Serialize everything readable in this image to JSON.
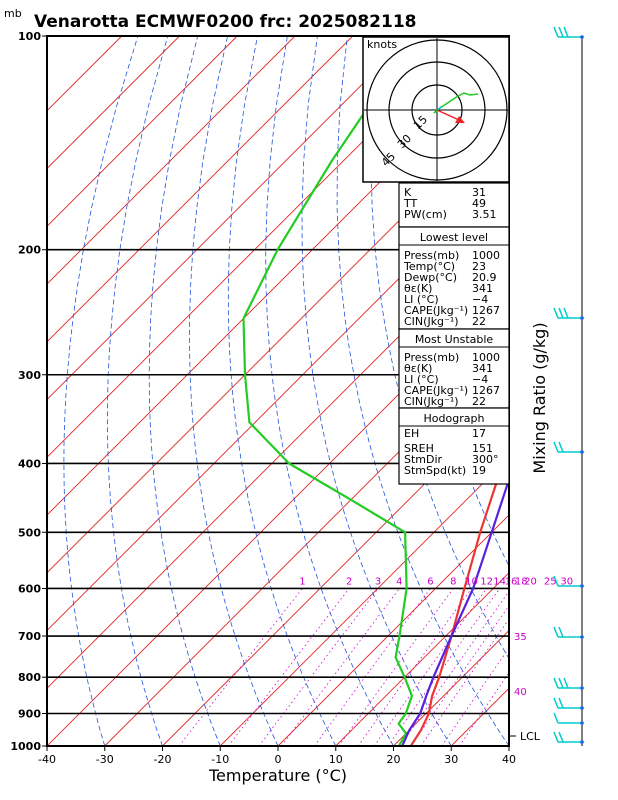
{
  "header": {
    "title": "Venarotta ECMWF0200 frc: 2025082118",
    "unit_mb": "mb"
  },
  "axes": {
    "xlabel": "Temperature (°C)",
    "x_ticks": [
      -40,
      -30,
      -20,
      -10,
      0,
      10,
      20,
      30,
      40
    ],
    "xlim": [
      -40,
      40
    ],
    "p_ticks": [
      100,
      200,
      300,
      400,
      500,
      600,
      700,
      800,
      900,
      1000
    ],
    "plim": [
      100,
      1000
    ],
    "mixing_label": "Mixing Ratio (g/kg)",
    "mixing_values": [
      "1",
      "2",
      "3",
      "4",
      "6",
      "8",
      "10",
      "12",
      "14",
      "16",
      "18",
      "20",
      "25",
      "30"
    ],
    "isotherm_labels": [
      "30",
      "35",
      "40"
    ],
    "lcl_label": "LCL"
  },
  "hodograph": {
    "unit": "knots",
    "ring_labels": [
      "15",
      "30",
      "45"
    ]
  },
  "indices": [
    {
      "label": "K",
      "value": "31"
    },
    {
      "label": "TT",
      "value": "49"
    },
    {
      "label": "PW(cm)",
      "value": "3.51"
    }
  ],
  "lowest_level": {
    "heading": "Lowest level",
    "rows": [
      {
        "label": "Press(mb)",
        "value": "1000"
      },
      {
        "label": "Temp(°C)",
        "value": "23"
      },
      {
        "label": "Dewp(°C)",
        "value": "20.9"
      },
      {
        "label": "θε(K)",
        "value": "341"
      },
      {
        "label": "LI (°C)",
        "value": "−4"
      },
      {
        "label": "CAPE(Jkg⁻¹)",
        "value": "1267"
      },
      {
        "label": "CIN(Jkg⁻¹)",
        "value": "22"
      }
    ]
  },
  "most_unstable": {
    "heading": "Most Unstable",
    "rows": [
      {
        "label": "Press(mb)",
        "value": "1000"
      },
      {
        "label": "θε(K)",
        "value": "341"
      },
      {
        "label": "LI (°C)",
        "value": "−4"
      },
      {
        "label": "CAPE(Jkg⁻¹)",
        "value": "1267"
      },
      {
        "label": "CIN(Jkg⁻¹)",
        "value": "22"
      }
    ]
  },
  "hodo_table": {
    "heading": "Hodograph",
    "rows": [
      {
        "label": "EH",
        "value": "17"
      },
      {
        "label": "SREH",
        "value": "151"
      },
      {
        "label": "StmDir",
        "value": "300°"
      },
      {
        "label": "StmSpd(kt)",
        "value": "19"
      }
    ]
  },
  "colors": {
    "temperature": "#ee3333",
    "dewpoint": "#22cc22",
    "parcel": "#5522dd",
    "isotherm": "#e02020",
    "dry_adiabat": "#2255dd",
    "mixing_ratio": "#cc00cc",
    "barbs": "#00cccc"
  },
  "chart_data": {
    "type": "line",
    "title": "Venarotta ECMWF0200 frc: 2025082118",
    "xlabel": "Temperature (°C)",
    "ylabel": "mb",
    "xlim": [
      -40,
      40
    ],
    "ylim": [
      1000,
      100
    ],
    "log_y": true,
    "skew": true,
    "series": [
      {
        "key": "temperature",
        "pressure": [
          1000,
          950,
          900,
          850,
          800,
          700,
          600,
          500,
          400,
          300,
          250,
          200,
          150,
          100
        ],
        "values": [
          23,
          22,
          20.5,
          18,
          16,
          11,
          5,
          -2,
          -10,
          -25,
          -36,
          -44,
          -51,
          -56
        ]
      },
      {
        "key": "dewpoint",
        "pressure": [
          1000,
          960,
          950,
          930,
          900,
          850,
          800,
          750,
          700,
          600,
          500,
          450,
          400,
          350,
          300,
          250,
          200,
          150,
          100
        ],
        "values": [
          20.9,
          20,
          19,
          17,
          16.5,
          14.5,
          10,
          5,
          2,
          -5,
          -15,
          -30,
          -47,
          -61,
          -70,
          -80,
          -86,
          -92,
          -99
        ]
      },
      {
        "key": "parcel",
        "pressure": [
          1000,
          950,
          900,
          850,
          800,
          700,
          600,
          500,
          400,
          300,
          250,
          200,
          150,
          120
        ],
        "values": [
          21.5,
          20,
          19,
          17,
          15,
          11,
          6.5,
          0,
          -8,
          -22,
          -30,
          -42,
          -58,
          -70
        ]
      }
    ],
    "mixing_ratio_gkg": [
      1,
      2,
      3,
      4,
      6,
      8,
      10,
      12,
      14,
      16,
      18,
      20,
      25,
      30
    ],
    "lcl_pressure": 975,
    "hodograph": {
      "max_ring_kt": 45,
      "storm_motion_dir_deg": 300,
      "storm_motion_speed_kt": 19
    }
  }
}
